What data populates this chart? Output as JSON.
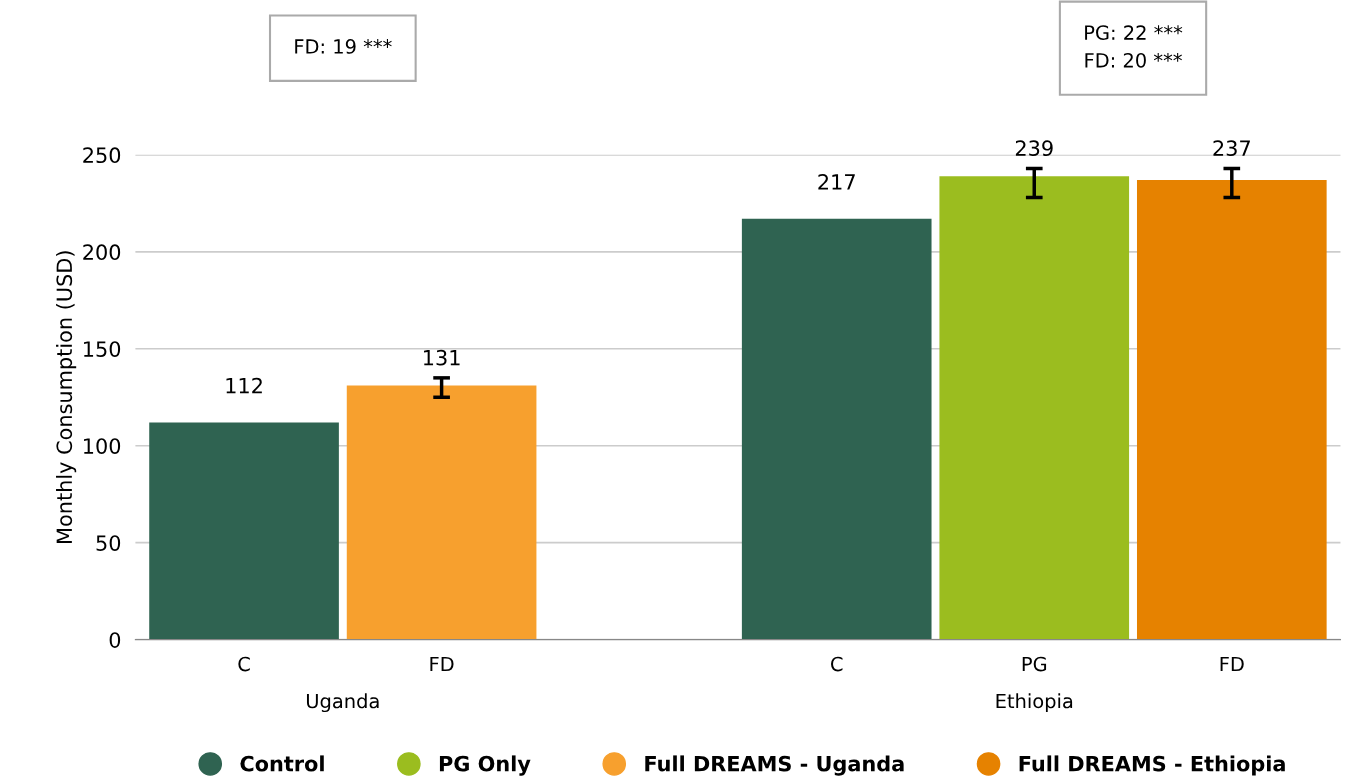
{
  "chart_data": {
    "type": "bar",
    "ylabel": "Monthly Consumption (USD)",
    "categories": [
      "C",
      "FD",
      null,
      "C",
      "PG",
      "FD"
    ],
    "series": [
      {
        "name": "Control",
        "color": "#2f6351",
        "values": [
          112,
          null,
          null,
          217,
          null,
          null
        ]
      },
      {
        "name": "PG Only",
        "color": "#9bbd1f",
        "values": [
          null,
          null,
          null,
          null,
          239,
          null
        ],
        "errors": [
          null,
          null,
          null,
          null,
          [
            228,
            243
          ],
          null
        ]
      },
      {
        "name": "Full DREAMS - Uganda",
        "color": "#f7a02e",
        "values": [
          null,
          131,
          null,
          null,
          null,
          null
        ],
        "errors": [
          null,
          [
            125,
            135
          ],
          null,
          null,
          null,
          null
        ]
      },
      {
        "name": "Full DREAMS - Ethiopia",
        "color": "#e68200",
        "values": [
          null,
          null,
          null,
          null,
          null,
          237
        ],
        "errors": [
          null,
          null,
          null,
          null,
          null,
          [
            228,
            243
          ]
        ]
      }
    ],
    "ylim": [
      0,
      250
    ],
    "yticks": [
      0,
      50,
      100,
      150,
      200,
      250
    ],
    "grid": "y",
    "legend": "bottom",
    "data_labels": true,
    "annotations": [
      "FD: 19 ***",
      "PG: 22 ***\nFD: 20 ***",
      "Uganda",
      "Ethiopia"
    ]
  }
}
